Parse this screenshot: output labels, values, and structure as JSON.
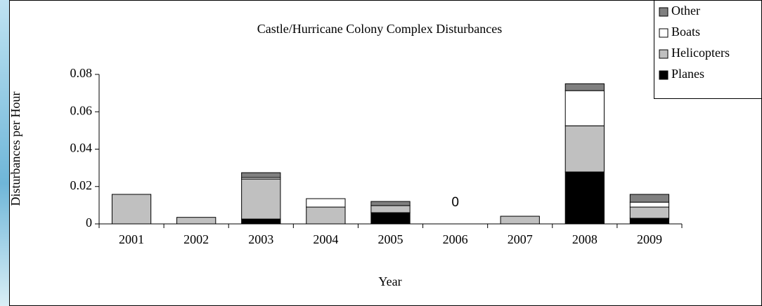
{
  "chart_data": {
    "type": "stacked_bar",
    "title": "Castle/Hurricane Colony Complex Disturbances",
    "x_label": "Year",
    "y_label": "Disturbances per Hour",
    "categories": [
      "2001",
      "2002",
      "2003",
      "2004",
      "2005",
      "2006",
      "2007",
      "2008",
      "2009"
    ],
    "series": [
      {
        "name": "Planes",
        "color": "#000000",
        "values": [
          0,
          0,
          0.0026,
          0,
          0.006,
          0,
          0,
          0.0278,
          0.003
        ]
      },
      {
        "name": "Helicopters",
        "color": "#c0c0c0",
        "values": [
          0.0158,
          0.0035,
          0.0214,
          0.009,
          0.0038,
          0,
          0.0041,
          0.0247,
          0.006
        ]
      },
      {
        "name": "Boats",
        "color": "#ffffff",
        "values": [
          0,
          0,
          0.0008,
          0.0045,
          0,
          0,
          0,
          0.0188,
          0.0026
        ]
      },
      {
        "name": "Other",
        "color": "#808080",
        "values": [
          0,
          0,
          0.0026,
          0,
          0.0022,
          0,
          0,
          0.0037,
          0.0042
        ]
      }
    ],
    "annotations": [
      {
        "text": "0",
        "category": "2006"
      }
    ],
    "ylim": [
      0,
      0.08
    ],
    "yticks": [
      0,
      0.02,
      0.04,
      0.06,
      0.08
    ],
    "legend": "top-right"
  }
}
